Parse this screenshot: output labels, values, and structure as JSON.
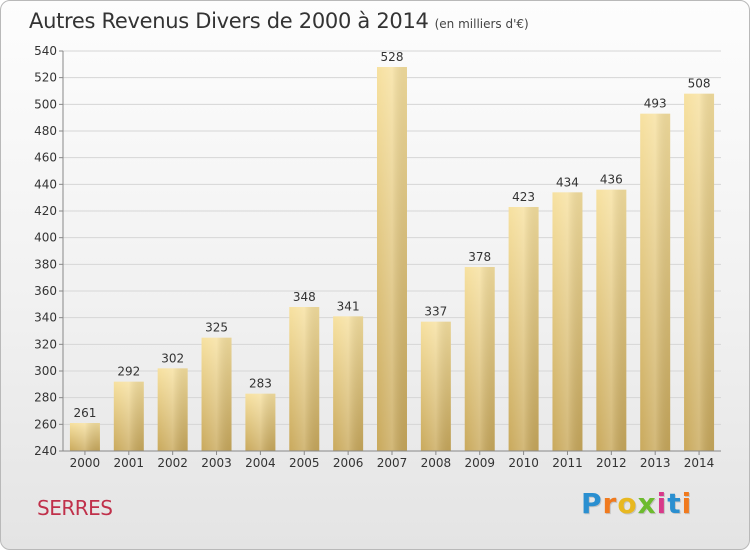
{
  "title": "Autres Revenus Divers de 2000 à 2014",
  "unit": "(en milliers d'€)",
  "commune": "SERRES",
  "logo": {
    "letters": [
      "P",
      "r",
      "o",
      "x",
      "i",
      "t",
      "i"
    ],
    "colors": [
      "#2a8fd0",
      "#f07a1e",
      "#e8b820",
      "#6dbb2e",
      "#d83a8a",
      "#2a8fd0",
      "#f07a1e"
    ]
  },
  "colors": {
    "bar_light": "#f7e1a0",
    "bar_dark": "#c9a95c",
    "grid": "#d6d6d6",
    "axis": "#888888"
  },
  "chart_data": {
    "type": "bar",
    "categories": [
      "2000",
      "2001",
      "2002",
      "2003",
      "2004",
      "2005",
      "2006",
      "2007",
      "2008",
      "2009",
      "2010",
      "2011",
      "2012",
      "2013",
      "2014"
    ],
    "values": [
      261,
      292,
      302,
      325,
      283,
      348,
      341,
      528,
      337,
      378,
      423,
      434,
      436,
      493,
      508
    ],
    "ylim": [
      240,
      540
    ],
    "yticks": [
      240,
      260,
      280,
      300,
      320,
      340,
      360,
      380,
      400,
      420,
      440,
      460,
      480,
      500,
      520,
      540
    ],
    "grid": true,
    "data_labels": true
  }
}
